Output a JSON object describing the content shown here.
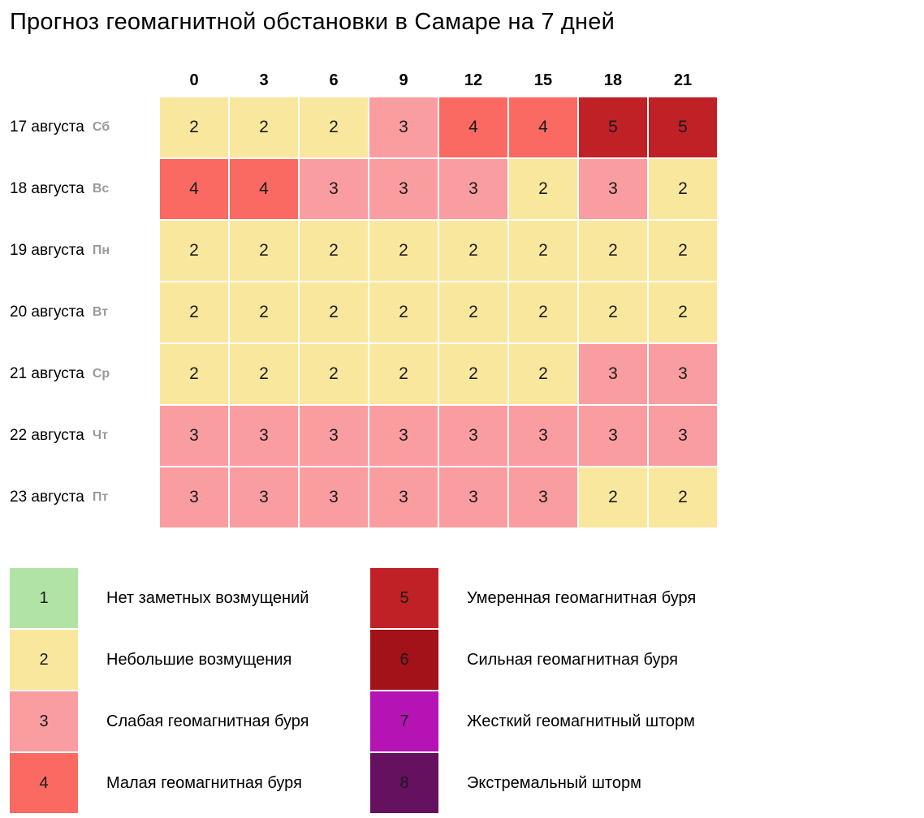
{
  "title": "Прогноз геомагнитной обстановки в Самаре на 7 дней",
  "chart_data": {
    "type": "heatmap",
    "title": "Прогноз геомагнитной обстановки в Самаре на 7 дней",
    "x_ticks_hours": [
      "0",
      "3",
      "6",
      "9",
      "12",
      "15",
      "18",
      "21"
    ],
    "rows": [
      {
        "date": "17 августа",
        "weekday": "Сб",
        "values": [
          2,
          2,
          2,
          3,
          4,
          4,
          5,
          5
        ]
      },
      {
        "date": "18 августа",
        "weekday": "Вс",
        "values": [
          4,
          4,
          3,
          3,
          3,
          2,
          3,
          2
        ]
      },
      {
        "date": "19 августа",
        "weekday": "Пн",
        "values": [
          2,
          2,
          2,
          2,
          2,
          2,
          2,
          2
        ]
      },
      {
        "date": "20 августа",
        "weekday": "Вт",
        "values": [
          2,
          2,
          2,
          2,
          2,
          2,
          2,
          2
        ]
      },
      {
        "date": "21 августа",
        "weekday": "Ср",
        "values": [
          2,
          2,
          2,
          2,
          2,
          2,
          3,
          3
        ]
      },
      {
        "date": "22 августа",
        "weekday": "Чт",
        "values": [
          3,
          3,
          3,
          3,
          3,
          3,
          3,
          3
        ]
      },
      {
        "date": "23 августа",
        "weekday": "Пт",
        "values": [
          3,
          3,
          3,
          3,
          3,
          3,
          2,
          2
        ]
      }
    ],
    "level_colors": {
      "1": "#b1e3a4",
      "2": "#fae79e",
      "3": "#f99da1",
      "4": "#fa6a63",
      "5": "#bf2127",
      "6": "#a31119",
      "7": "#b513b4",
      "8": "#661060"
    },
    "legend": [
      {
        "level": "1",
        "label": "Нет заметных возмущений"
      },
      {
        "level": "2",
        "label": "Небольшие возмущения"
      },
      {
        "level": "3",
        "label": "Слабая геомагнитная буря"
      },
      {
        "level": "4",
        "label": "Малая геомагнитная буря"
      },
      {
        "level": "5",
        "label": "Умеренная геомагнитная буря"
      },
      {
        "level": "6",
        "label": "Сильная геомагнитная буря"
      },
      {
        "level": "7",
        "label": "Жесткий геомагнитный шторм"
      },
      {
        "level": "8",
        "label": "Экстремальный шторм"
      }
    ],
    "legend_position": "bottom, two columns (levels 1-4 left, 5-8 right)",
    "grid": "white 2px gaps between cells"
  }
}
